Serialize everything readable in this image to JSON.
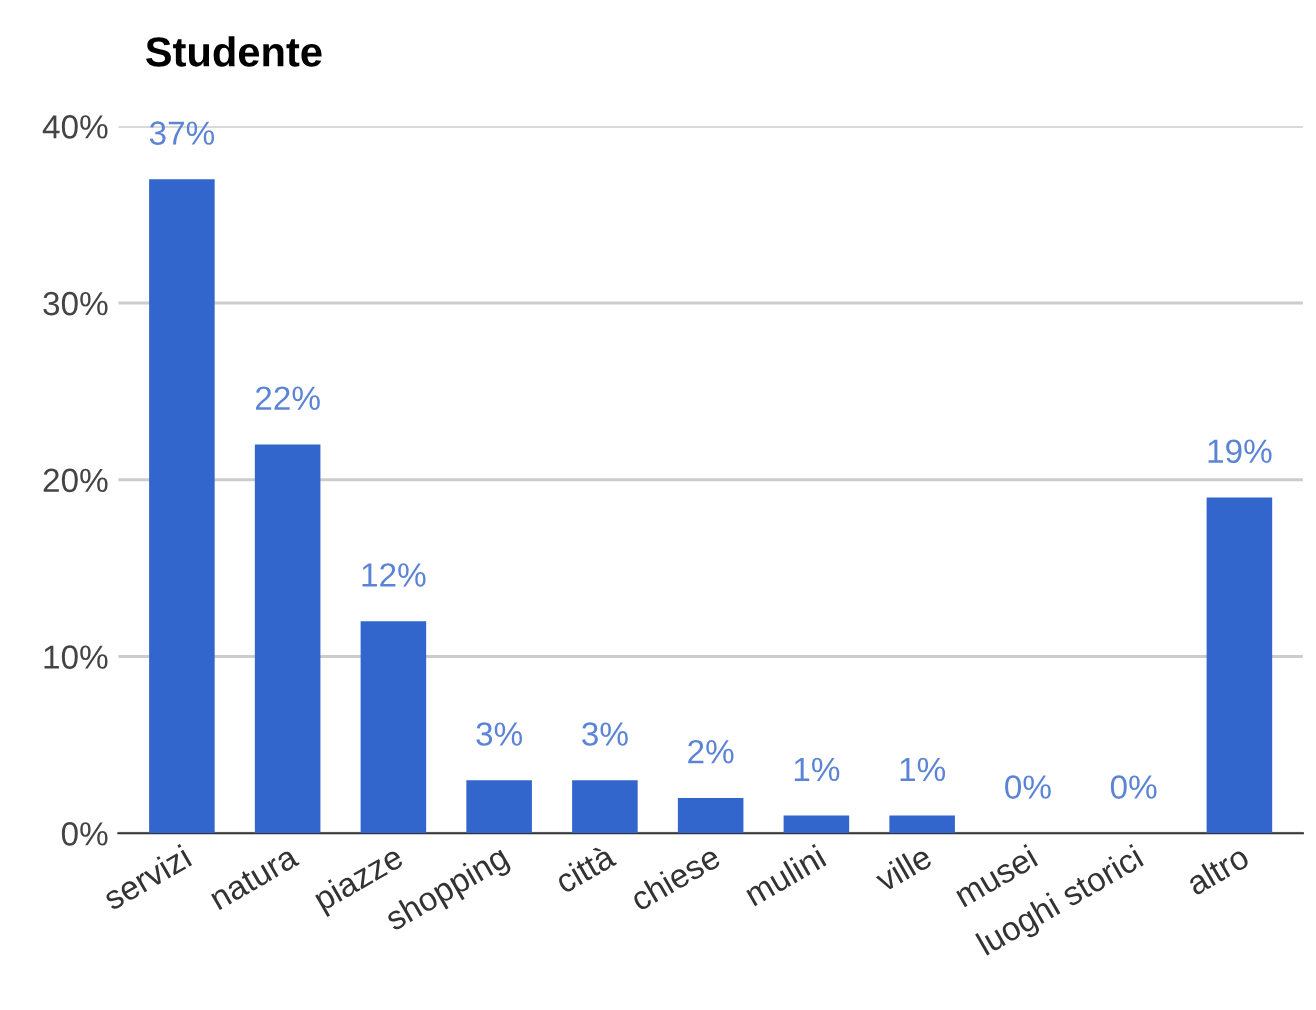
{
  "chart_data": {
    "type": "bar",
    "title": "Studente",
    "categories": [
      "servizi",
      "natura",
      "piazze",
      "shopping",
      "città",
      "chiese",
      "mulini",
      "ville",
      "musei",
      "luoghi storici",
      "altro"
    ],
    "values": [
      37,
      22,
      12,
      3,
      3,
      2,
      1,
      1,
      0,
      0,
      19
    ],
    "value_labels": [
      "37%",
      "22%",
      "12%",
      "3%",
      "3%",
      "2%",
      "1%",
      "1%",
      "0%",
      "0%",
      "19%"
    ],
    "color": "#3366cc",
    "ylim": [
      0,
      40
    ],
    "yticks": [
      {
        "value": 0,
        "label": "0%"
      },
      {
        "value": 10,
        "label": "10%"
      },
      {
        "value": 20,
        "label": "20%"
      },
      {
        "value": 30,
        "label": "30%"
      },
      {
        "value": 40,
        "label": "40%"
      }
    ],
    "grid": "y"
  }
}
